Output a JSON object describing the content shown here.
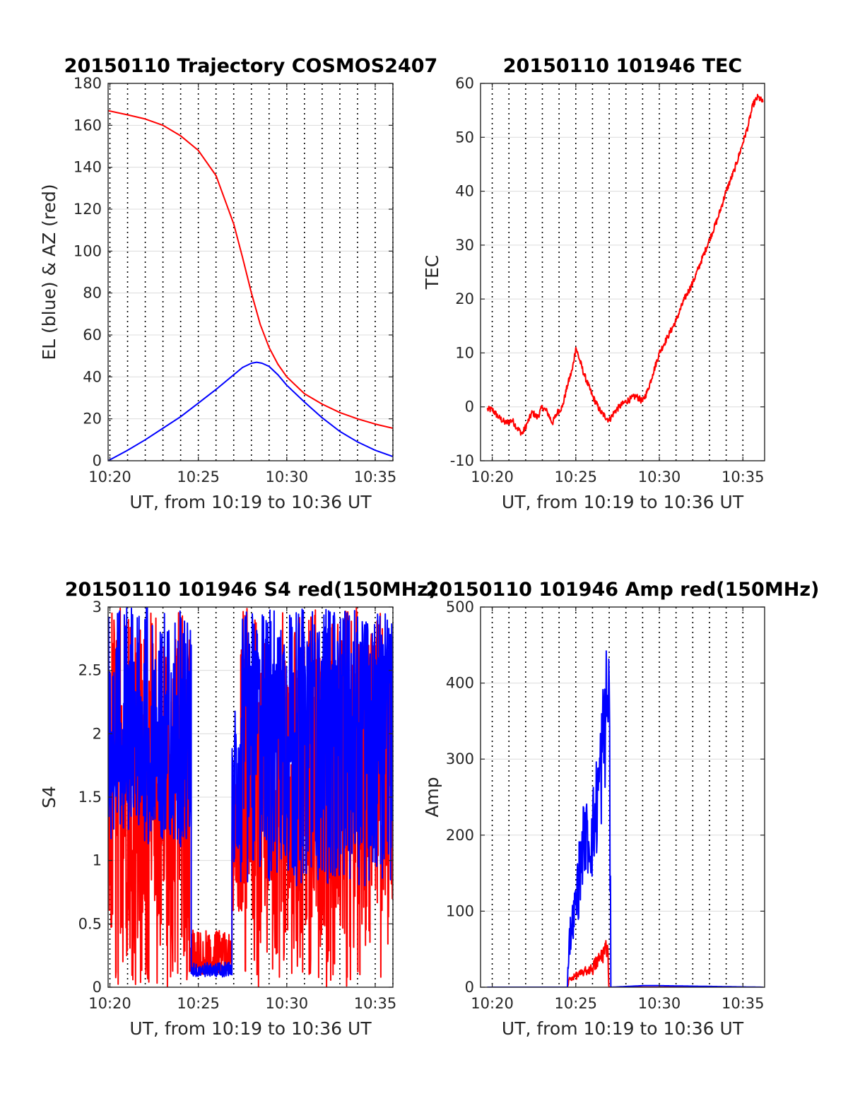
{
  "colors": {
    "red": "#ff0000",
    "blue": "#0000ff",
    "grid": "#dcdcdc",
    "vline": "#000000",
    "axis": "#262626"
  },
  "chart_data": [
    {
      "type": "line",
      "title": "20150110 Trajectory COSMOS2407",
      "xlabel": "UT, from 10:19 to 10:36 UT",
      "ylabel": "EL (blue) & AZ (red)",
      "xlim": [
        19.9,
        36.0
      ],
      "ylim": [
        0,
        180
      ],
      "xticks": [
        20,
        25,
        30,
        35
      ],
      "xtick_labels": [
        "10:20",
        "10:25",
        "10:30",
        "10:35"
      ],
      "yticks": [
        0,
        20,
        40,
        60,
        80,
        100,
        120,
        140,
        160,
        180
      ],
      "ytick_labels": [
        "0",
        "20",
        "40",
        "60",
        "80",
        "100",
        "120",
        "140",
        "160",
        "180"
      ],
      "grid": true,
      "vlines": [
        20,
        21,
        22,
        23,
        24,
        25,
        26,
        27,
        28,
        29,
        30,
        31,
        32,
        33,
        34,
        35,
        36
      ],
      "series": [
        {
          "color": "red",
          "x": [
            19.9,
            21,
            22,
            23,
            24,
            25,
            26,
            27,
            27.5,
            28,
            28.5,
            29,
            29.5,
            30,
            31,
            32,
            33,
            34,
            35,
            36
          ],
          "y": [
            167,
            165,
            163,
            160,
            155,
            148,
            136,
            113,
            97,
            80,
            65,
            54,
            46,
            40,
            32,
            27,
            23,
            20,
            17.5,
            15.5
          ]
        },
        {
          "color": "blue",
          "x": [
            19.9,
            21,
            22,
            23,
            24,
            25,
            26,
            27,
            27.5,
            28,
            28.3,
            28.6,
            29,
            29.5,
            30,
            31,
            32,
            33,
            34,
            35,
            36
          ],
          "y": [
            0,
            5,
            10,
            15.5,
            21,
            27.5,
            34,
            41,
            44.5,
            46.5,
            47,
            46.5,
            45,
            41,
            36,
            28,
            20.5,
            14,
            9,
            5,
            2
          ]
        }
      ]
    },
    {
      "type": "line",
      "title": "20150110 101946 TEC",
      "xlabel": "UT, from 10:19 to 10:36 UT",
      "ylabel": "TEC",
      "xlim": [
        19.3,
        36.3
      ],
      "ylim": [
        -10,
        60
      ],
      "xticks": [
        20,
        25,
        30,
        35
      ],
      "xtick_labels": [
        "10:20",
        "10:25",
        "10:30",
        "10:35"
      ],
      "yticks": [
        -10,
        0,
        10,
        20,
        30,
        40,
        50,
        60
      ],
      "ytick_labels": [
        "-10",
        "0",
        "10",
        "20",
        "30",
        "40",
        "50",
        "60"
      ],
      "grid": true,
      "vlines": [
        20,
        21,
        22,
        23,
        24,
        25,
        26,
        27,
        28,
        29,
        30,
        31,
        32,
        33,
        34,
        35
      ],
      "series": [
        {
          "color": "red",
          "x": [
            19.7,
            20.0,
            20.4,
            20.8,
            21.2,
            21.5,
            21.8,
            22.1,
            22.4,
            22.7,
            23.0,
            23.3,
            23.6,
            23.9,
            24.2,
            24.5,
            24.8,
            25.0,
            25.5,
            26.0,
            26.5,
            27.0,
            27.3,
            27.6,
            28.0,
            28.3,
            28.6,
            29.0,
            29.3,
            29.6,
            30.0,
            30.5,
            31.0,
            31.5,
            32.0,
            32.5,
            33.0,
            33.5,
            34.0,
            34.5,
            35.0,
            35.3,
            35.6,
            35.9,
            36.2
          ],
          "y": [
            -0.5,
            -0.5,
            -2,
            -3,
            -2.5,
            -4,
            -5,
            -3,
            -1,
            -2,
            0,
            -1,
            -3,
            -1,
            0,
            4,
            7,
            11,
            6,
            2,
            -1,
            -2.5,
            -1,
            0,
            1,
            1.5,
            2,
            1,
            3,
            6,
            10,
            13,
            16,
            20,
            23,
            27,
            31,
            35,
            40,
            44,
            49,
            52,
            56,
            57.5,
            56.5
          ]
        }
      ]
    },
    {
      "type": "line",
      "title": "20150110 101946 S4 red(150MHz)",
      "xlabel": "UT, from 10:19 to 10:36 UT",
      "ylabel": "S4",
      "xlim": [
        19.9,
        36.0
      ],
      "ylim": [
        0,
        3
      ],
      "xticks": [
        20,
        25,
        30,
        35
      ],
      "xtick_labels": [
        "10:20",
        "10:25",
        "10:30",
        "10:35"
      ],
      "yticks": [
        0,
        0.5,
        1,
        1.5,
        2,
        2.5,
        3
      ],
      "ytick_labels": [
        "0",
        "0.5",
        "1",
        "1.5",
        "2",
        "2.5",
        "3"
      ],
      "grid": true,
      "vlines": [
        20,
        21,
        22,
        23,
        24,
        25,
        26,
        27,
        28,
        29,
        30,
        31,
        32,
        33,
        34,
        35,
        36
      ],
      "series": [
        {
          "color": "red",
          "x": [
            19.9,
            36.0
          ],
          "y": [
            1.5,
            1.5
          ],
          "segments": [
            {
              "x": [
                19.9,
                24.5
              ],
              "low": 0,
              "high": 3,
              "base": 1.6
            },
            {
              "x": [
                24.5,
                26.9
              ],
              "low": 0.1,
              "high": 0.45,
              "base": 0.22
            },
            {
              "x": [
                26.9,
                27.4
              ],
              "low": 0.6,
              "high": 1.6,
              "base": 1.1
            },
            {
              "x": [
                27.4,
                36.0
              ],
              "low": 0,
              "high": 3,
              "base": 1.7
            }
          ]
        },
        {
          "color": "blue",
          "x": [
            19.9,
            36.0
          ],
          "y": [
            1.5,
            1.5
          ],
          "segments": [
            {
              "x": [
                19.9,
                24.6
              ],
              "low": 1.1,
              "high": 3,
              "base": 1.8
            },
            {
              "x": [
                24.6,
                26.9
              ],
              "low": 0.08,
              "high": 0.2,
              "base": 0.13
            },
            {
              "x": [
                26.9,
                27.4
              ],
              "low": 0.9,
              "high": 2.2,
              "base": 1.5
            },
            {
              "x": [
                27.4,
                36.0
              ],
              "low": 0.8,
              "high": 3,
              "base": 2.3
            }
          ]
        }
      ]
    },
    {
      "type": "line",
      "title": "20150110 101946 Amp red(150MHz)",
      "xlabel": "UT, from 10:19 to 10:36 UT",
      "ylabel": "Amp",
      "xlim": [
        19.3,
        36.3
      ],
      "ylim": [
        0,
        500
      ],
      "xticks": [
        20,
        25,
        30,
        35
      ],
      "xtick_labels": [
        "10:20",
        "10:25",
        "10:30",
        "10:35"
      ],
      "yticks": [
        0,
        100,
        200,
        300,
        400,
        500
      ],
      "ytick_labels": [
        "0",
        "100",
        "200",
        "300",
        "400",
        "500"
      ],
      "grid": true,
      "vlines": [
        20,
        21,
        22,
        23,
        24,
        25,
        26,
        27,
        28,
        29,
        30,
        31,
        32,
        33,
        34,
        35
      ],
      "series": [
        {
          "color": "red",
          "x": [
            19.7,
            24.5,
            24.6,
            25.0,
            25.5,
            26.0,
            26.5,
            26.9,
            27.0,
            36.2
          ],
          "y": [
            0,
            0,
            10,
            15,
            20,
            25,
            40,
            55,
            0,
            0
          ]
        },
        {
          "color": "blue",
          "x": [
            19.7,
            24.5,
            24.6,
            25.0,
            25.5,
            26.0,
            26.5,
            26.8,
            26.9,
            27.0,
            27.1,
            29.0,
            30.0,
            36.2
          ],
          "y": [
            0,
            0,
            60,
            110,
            200,
            190,
            290,
            360,
            370,
            400,
            0,
            2,
            2,
            0
          ]
        }
      ]
    }
  ]
}
